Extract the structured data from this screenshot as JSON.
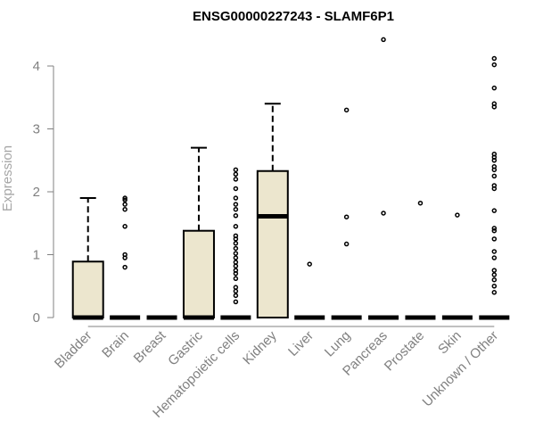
{
  "chart_data": {
    "type": "boxplot",
    "title": "ENSG00000227243 - SLAMF6P1",
    "xlabel": "",
    "ylabel": "Expression",
    "ylim": [
      0,
      4
    ],
    "yticks": [
      0,
      1,
      2,
      3,
      4
    ],
    "grid": false,
    "colors": {
      "box_fill": "#ece6ce",
      "box_stroke": "#000000",
      "axis": "#808080",
      "ylabel": "#a6a6a6"
    },
    "categories": [
      "Bladder",
      "Brain",
      "Breast",
      "Gastric",
      "Hematopoietic cells",
      "Kidney",
      "Liver",
      "Lung",
      "Pancreas",
      "Prostate",
      "Skin",
      "Unknown / Other"
    ],
    "boxes": [
      {
        "q1": 0,
        "median": 0,
        "q3": 0.89,
        "whisker_low": 0,
        "whisker_high": 1.9,
        "outliers": []
      },
      {
        "q1": 0,
        "median": 0,
        "q3": 0,
        "whisker_low": 0,
        "whisker_high": 0,
        "outliers": [
          0.8,
          0.95,
          1.0,
          1.45,
          1.72,
          1.8,
          1.87,
          1.9
        ]
      },
      {
        "q1": 0,
        "median": 0,
        "q3": 0,
        "whisker_low": 0,
        "whisker_high": 0,
        "outliers": []
      },
      {
        "q1": 0,
        "median": 0,
        "q3": 1.38,
        "whisker_low": 0,
        "whisker_high": 2.7,
        "outliers": []
      },
      {
        "q1": 0,
        "median": 0,
        "q3": 0,
        "whisker_low": 0,
        "whisker_high": 0,
        "outliers": [
          0.25,
          0.35,
          0.42,
          0.48,
          0.62,
          0.7,
          0.75,
          0.82,
          0.88,
          0.95,
          1.02,
          1.1,
          1.18,
          1.25,
          1.3,
          1.45,
          1.62,
          1.72,
          1.8,
          1.9,
          2.05,
          2.2,
          2.28,
          2.35
        ]
      },
      {
        "q1": 0,
        "median": 1.61,
        "q3": 2.33,
        "whisker_low": 0,
        "whisker_high": 3.4,
        "outliers": []
      },
      {
        "q1": 0,
        "median": 0,
        "q3": 0,
        "whisker_low": 0,
        "whisker_high": 0,
        "outliers": [
          0.85
        ]
      },
      {
        "q1": 0,
        "median": 0,
        "q3": 0,
        "whisker_low": 0,
        "whisker_high": 0,
        "outliers": [
          1.17,
          1.6,
          3.3
        ]
      },
      {
        "q1": 0,
        "median": 0,
        "q3": 0,
        "whisker_low": 0,
        "whisker_high": 0,
        "outliers": [
          1.66,
          4.42
        ]
      },
      {
        "q1": 0,
        "median": 0,
        "q3": 0,
        "whisker_low": 0,
        "whisker_high": 0,
        "outliers": [
          1.82
        ]
      },
      {
        "q1": 0,
        "median": 0,
        "q3": 0,
        "whisker_low": 0,
        "whisker_high": 0,
        "outliers": [
          1.63
        ]
      },
      {
        "q1": 0,
        "median": 0,
        "q3": 0,
        "whisker_low": 0,
        "whisker_high": 0,
        "outliers": [
          0.4,
          0.5,
          0.6,
          0.68,
          0.75,
          0.95,
          1.05,
          1.25,
          1.38,
          1.42,
          1.7,
          2.05,
          2.1,
          2.25,
          2.35,
          2.4,
          2.5,
          2.55,
          2.6,
          3.35,
          3.4,
          3.65,
          4.02,
          4.12
        ]
      }
    ]
  }
}
